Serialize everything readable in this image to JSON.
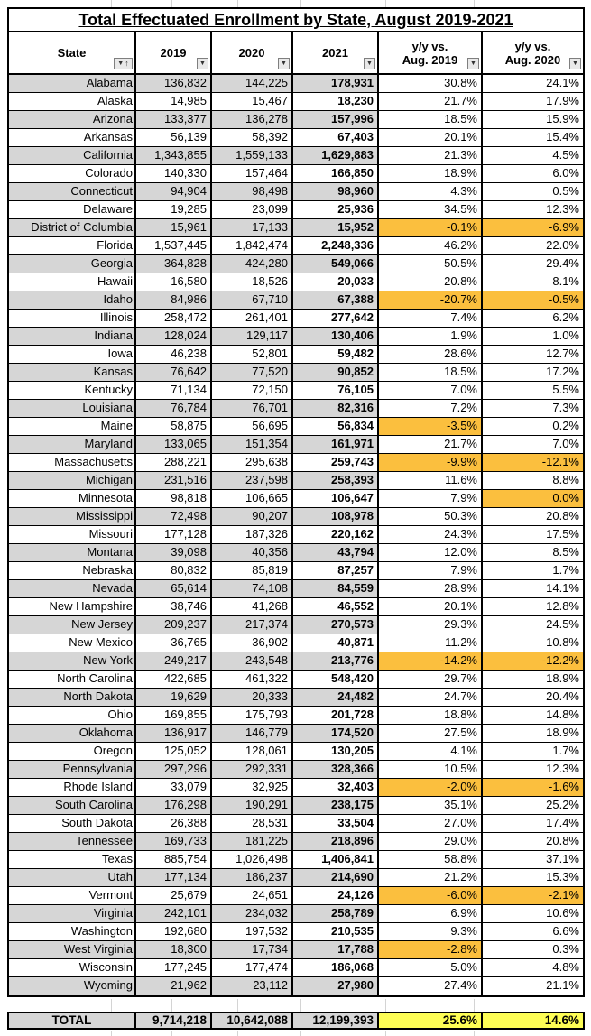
{
  "title": "Total Effectuated Enrollment by State, August 2019-2021",
  "header": {
    "state": "State",
    "col2019": "2019",
    "col2020": "2020",
    "col2021": "2021",
    "yy2019_line1": "y/y vs.",
    "yy2019_line2": "Aug. 2019",
    "yy2020_line1": "y/y vs.",
    "yy2020_line2": "Aug. 2020"
  },
  "icons": {
    "filter_glyph": "▼",
    "sort_asc_glyph": "↑"
  },
  "colors": {
    "row_band": "#D6D6D6",
    "negative_highlight": "#FBBF3E",
    "total_highlight": "#FEFE55",
    "grid_faint": "#D4D4D4"
  },
  "rows": [
    {
      "state": "Alabama",
      "y2019": "136,832",
      "y2020": "144,225",
      "y2021": "178,931",
      "yy2019": "30.8%",
      "yy2020": "24.1%"
    },
    {
      "state": "Alaska",
      "y2019": "14,985",
      "y2020": "15,467",
      "y2021": "18,230",
      "yy2019": "21.7%",
      "yy2020": "17.9%"
    },
    {
      "state": "Arizona",
      "y2019": "133,377",
      "y2020": "136,278",
      "y2021": "157,996",
      "yy2019": "18.5%",
      "yy2020": "15.9%"
    },
    {
      "state": "Arkansas",
      "y2019": "56,139",
      "y2020": "58,392",
      "y2021": "67,403",
      "yy2019": "20.1%",
      "yy2020": "15.4%"
    },
    {
      "state": "California",
      "y2019": "1,343,855",
      "y2020": "1,559,133",
      "y2021": "1,629,883",
      "yy2019": "21.3%",
      "yy2020": "4.5%"
    },
    {
      "state": "Colorado",
      "y2019": "140,330",
      "y2020": "157,464",
      "y2021": "166,850",
      "yy2019": "18.9%",
      "yy2020": "6.0%"
    },
    {
      "state": "Connecticut",
      "y2019": "94,904",
      "y2020": "98,498",
      "y2021": "98,960",
      "yy2019": "4.3%",
      "yy2020": "0.5%"
    },
    {
      "state": "Delaware",
      "y2019": "19,285",
      "y2020": "23,099",
      "y2021": "25,936",
      "yy2019": "34.5%",
      "yy2020": "12.3%"
    },
    {
      "state": "District of Columbia",
      "y2019": "15,961",
      "y2020": "17,133",
      "y2021": "15,952",
      "yy2019": "-0.1%",
      "yy2020": "-6.9%",
      "hl2019": true,
      "hl2020": true
    },
    {
      "state": "Florida",
      "y2019": "1,537,445",
      "y2020": "1,842,474",
      "y2021": "2,248,336",
      "yy2019": "46.2%",
      "yy2020": "22.0%"
    },
    {
      "state": "Georgia",
      "y2019": "364,828",
      "y2020": "424,280",
      "y2021": "549,066",
      "yy2019": "50.5%",
      "yy2020": "29.4%"
    },
    {
      "state": "Hawaii",
      "y2019": "16,580",
      "y2020": "18,526",
      "y2021": "20,033",
      "yy2019": "20.8%",
      "yy2020": "8.1%"
    },
    {
      "state": "Idaho",
      "y2019": "84,986",
      "y2020": "67,710",
      "y2021": "67,388",
      "yy2019": "-20.7%",
      "yy2020": "-0.5%",
      "hl2019": true,
      "hl2020": true
    },
    {
      "state": "Illinois",
      "y2019": "258,472",
      "y2020": "261,401",
      "y2021": "277,642",
      "yy2019": "7.4%",
      "yy2020": "6.2%"
    },
    {
      "state": "Indiana",
      "y2019": "128,024",
      "y2020": "129,117",
      "y2021": "130,406",
      "yy2019": "1.9%",
      "yy2020": "1.0%"
    },
    {
      "state": "Iowa",
      "y2019": "46,238",
      "y2020": "52,801",
      "y2021": "59,482",
      "yy2019": "28.6%",
      "yy2020": "12.7%"
    },
    {
      "state": "Kansas",
      "y2019": "76,642",
      "y2020": "77,520",
      "y2021": "90,852",
      "yy2019": "18.5%",
      "yy2020": "17.2%"
    },
    {
      "state": "Kentucky",
      "y2019": "71,134",
      "y2020": "72,150",
      "y2021": "76,105",
      "yy2019": "7.0%",
      "yy2020": "5.5%"
    },
    {
      "state": "Louisiana",
      "y2019": "76,784",
      "y2020": "76,701",
      "y2021": "82,316",
      "yy2019": "7.2%",
      "yy2020": "7.3%"
    },
    {
      "state": "Maine",
      "y2019": "58,875",
      "y2020": "56,695",
      "y2021": "56,834",
      "yy2019": "-3.5%",
      "yy2020": "0.2%",
      "hl2019": true
    },
    {
      "state": "Maryland",
      "y2019": "133,065",
      "y2020": "151,354",
      "y2021": "161,971",
      "yy2019": "21.7%",
      "yy2020": "7.0%"
    },
    {
      "state": "Massachusetts",
      "y2019": "288,221",
      "y2020": "295,638",
      "y2021": "259,743",
      "yy2019": "-9.9%",
      "yy2020": "-12.1%",
      "hl2019": true,
      "hl2020": true
    },
    {
      "state": "Michigan",
      "y2019": "231,516",
      "y2020": "237,598",
      "y2021": "258,393",
      "yy2019": "11.6%",
      "yy2020": "8.8%"
    },
    {
      "state": "Minnesota",
      "y2019": "98,818",
      "y2020": "106,665",
      "y2021": "106,647",
      "yy2019": "7.9%",
      "yy2020": "0.0%",
      "hl2020": true
    },
    {
      "state": "Mississippi",
      "y2019": "72,498",
      "y2020": "90,207",
      "y2021": "108,978",
      "yy2019": "50.3%",
      "yy2020": "20.8%"
    },
    {
      "state": "Missouri",
      "y2019": "177,128",
      "y2020": "187,326",
      "y2021": "220,162",
      "yy2019": "24.3%",
      "yy2020": "17.5%"
    },
    {
      "state": "Montana",
      "y2019": "39,098",
      "y2020": "40,356",
      "y2021": "43,794",
      "yy2019": "12.0%",
      "yy2020": "8.5%"
    },
    {
      "state": "Nebraska",
      "y2019": "80,832",
      "y2020": "85,819",
      "y2021": "87,257",
      "yy2019": "7.9%",
      "yy2020": "1.7%"
    },
    {
      "state": "Nevada",
      "y2019": "65,614",
      "y2020": "74,108",
      "y2021": "84,559",
      "yy2019": "28.9%",
      "yy2020": "14.1%"
    },
    {
      "state": "New Hampshire",
      "y2019": "38,746",
      "y2020": "41,268",
      "y2021": "46,552",
      "yy2019": "20.1%",
      "yy2020": "12.8%"
    },
    {
      "state": "New Jersey",
      "y2019": "209,237",
      "y2020": "217,374",
      "y2021": "270,573",
      "yy2019": "29.3%",
      "yy2020": "24.5%"
    },
    {
      "state": "New Mexico",
      "y2019": "36,765",
      "y2020": "36,902",
      "y2021": "40,871",
      "yy2019": "11.2%",
      "yy2020": "10.8%"
    },
    {
      "state": "New York",
      "y2019": "249,217",
      "y2020": "243,548",
      "y2021": "213,776",
      "yy2019": "-14.2%",
      "yy2020": "-12.2%",
      "hl2019": true,
      "hl2020": true
    },
    {
      "state": "North Carolina",
      "y2019": "422,685",
      "y2020": "461,322",
      "y2021": "548,420",
      "yy2019": "29.7%",
      "yy2020": "18.9%"
    },
    {
      "state": "North Dakota",
      "y2019": "19,629",
      "y2020": "20,333",
      "y2021": "24,482",
      "yy2019": "24.7%",
      "yy2020": "20.4%"
    },
    {
      "state": "Ohio",
      "y2019": "169,855",
      "y2020": "175,793",
      "y2021": "201,728",
      "yy2019": "18.8%",
      "yy2020": "14.8%"
    },
    {
      "state": "Oklahoma",
      "y2019": "136,917",
      "y2020": "146,779",
      "y2021": "174,520",
      "yy2019": "27.5%",
      "yy2020": "18.9%"
    },
    {
      "state": "Oregon",
      "y2019": "125,052",
      "y2020": "128,061",
      "y2021": "130,205",
      "yy2019": "4.1%",
      "yy2020": "1.7%"
    },
    {
      "state": "Pennsylvania",
      "y2019": "297,296",
      "y2020": "292,331",
      "y2021": "328,366",
      "yy2019": "10.5%",
      "yy2020": "12.3%"
    },
    {
      "state": "Rhode Island",
      "y2019": "33,079",
      "y2020": "32,925",
      "y2021": "32,403",
      "yy2019": "-2.0%",
      "yy2020": "-1.6%",
      "hl2019": true,
      "hl2020": true
    },
    {
      "state": "South Carolina",
      "y2019": "176,298",
      "y2020": "190,291",
      "y2021": "238,175",
      "yy2019": "35.1%",
      "yy2020": "25.2%"
    },
    {
      "state": "South Dakota",
      "y2019": "26,388",
      "y2020": "28,531",
      "y2021": "33,504",
      "yy2019": "27.0%",
      "yy2020": "17.4%"
    },
    {
      "state": "Tennessee",
      "y2019": "169,733",
      "y2020": "181,225",
      "y2021": "218,896",
      "yy2019": "29.0%",
      "yy2020": "20.8%"
    },
    {
      "state": "Texas",
      "y2019": "885,754",
      "y2020": "1,026,498",
      "y2021": "1,406,841",
      "yy2019": "58.8%",
      "yy2020": "37.1%"
    },
    {
      "state": "Utah",
      "y2019": "177,134",
      "y2020": "186,237",
      "y2021": "214,690",
      "yy2019": "21.2%",
      "yy2020": "15.3%"
    },
    {
      "state": "Vermont",
      "y2019": "25,679",
      "y2020": "24,651",
      "y2021": "24,126",
      "yy2019": "-6.0%",
      "yy2020": "-2.1%",
      "hl2019": true,
      "hl2020": true
    },
    {
      "state": "Virginia",
      "y2019": "242,101",
      "y2020": "234,032",
      "y2021": "258,789",
      "yy2019": "6.9%",
      "yy2020": "10.6%"
    },
    {
      "state": "Washington",
      "y2019": "192,680",
      "y2020": "197,532",
      "y2021": "210,535",
      "yy2019": "9.3%",
      "yy2020": "6.6%"
    },
    {
      "state": "West Virginia",
      "y2019": "18,300",
      "y2020": "17,734",
      "y2021": "17,788",
      "yy2019": "-2.8%",
      "yy2020": "0.3%",
      "hl2019": true
    },
    {
      "state": "Wisconsin",
      "y2019": "177,245",
      "y2020": "177,474",
      "y2021": "186,068",
      "yy2019": "5.0%",
      "yy2020": "4.8%"
    },
    {
      "state": "Wyoming",
      "y2019": "21,962",
      "y2020": "23,112",
      "y2021": "27,980",
      "yy2019": "27.4%",
      "yy2020": "21.1%"
    }
  ],
  "total": {
    "label": "TOTAL",
    "y2019": "9,714,218",
    "y2020": "10,642,088",
    "y2021": "12,199,393",
    "yy2019": "25.6%",
    "yy2020": "14.6%"
  }
}
